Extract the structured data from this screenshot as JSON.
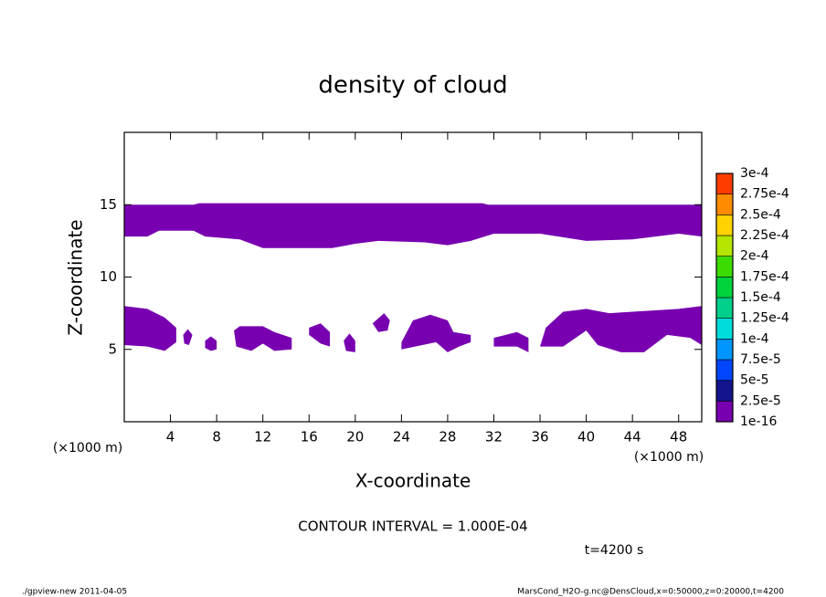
{
  "chart_data": {
    "type": "contour",
    "title": "density of cloud",
    "xlabel": "X-coordinate",
    "ylabel": "Z-coordinate",
    "xunit_left": "(×1000 m)",
    "xunit_right": "(×1000 m)",
    "xlim": [
      0,
      50
    ],
    "ylim": [
      0,
      20
    ],
    "xticks": [
      4,
      8,
      12,
      16,
      20,
      24,
      28,
      32,
      36,
      40,
      44,
      48
    ],
    "yticks": [
      5,
      10,
      15
    ],
    "contour_interval": "CONTOUR INTERVAL = 1.000E-04",
    "time": "t=4200 s",
    "footer_left": "./gpview-new  2011-04-05",
    "footer_right": "MarsCond_H2O-g.nc@DensCloud,x=0:50000,z=0:20000,t=4200",
    "colorbar": {
      "levels": [
        {
          "value": 1e-16,
          "label": "1e-16"
        },
        {
          "value": 2.5e-05,
          "label": "2.5e-5"
        },
        {
          "value": 5e-05,
          "label": "5e-5"
        },
        {
          "value": 7.5e-05,
          "label": "7.5e-5"
        },
        {
          "value": 0.0001,
          "label": "1e-4"
        },
        {
          "value": 0.000125,
          "label": "1.25e-4"
        },
        {
          "value": 0.00015,
          "label": "1.5e-4"
        },
        {
          "value": 0.000175,
          "label": "1.75e-4"
        },
        {
          "value": 0.0002,
          "label": "2e-4"
        },
        {
          "value": 0.000225,
          "label": "2.25e-4"
        },
        {
          "value": 0.00025,
          "label": "2.5e-4"
        },
        {
          "value": 0.000275,
          "label": "2.75e-4"
        },
        {
          "value": 0.0003,
          "label": "3e-4"
        }
      ],
      "colors": [
        "#7800b0",
        "#14148c",
        "#0046ff",
        "#0096ff",
        "#00dcdc",
        "#00d08c",
        "#00d23c",
        "#3cdc00",
        "#b4e600",
        "#ffd200",
        "#ff8c00",
        "#ff3c00",
        "#ff8c8c"
      ]
    }
  }
}
